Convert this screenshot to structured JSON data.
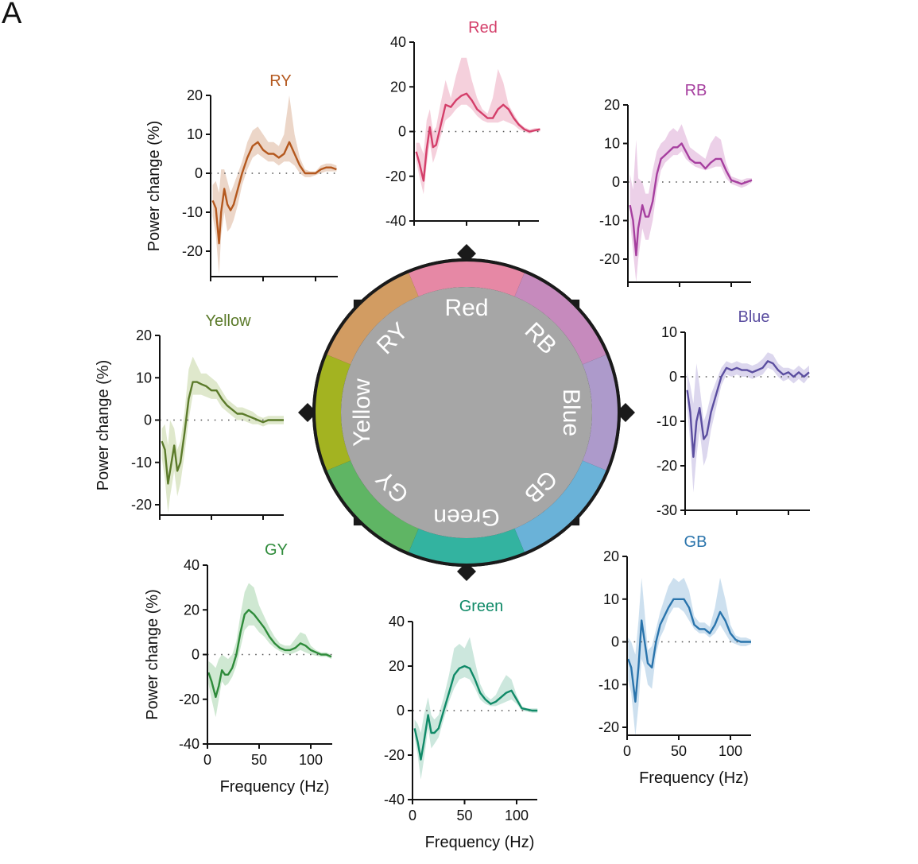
{
  "figure": {
    "panel_label": "A",
    "wheel": {
      "center_color": "#a6a6a6",
      "rim_color": "#1a1a1a",
      "segments": [
        {
          "label": "Red",
          "color": "#e688a5"
        },
        {
          "label": "RB",
          "color": "#c68abd"
        },
        {
          "label": "Blue",
          "color": "#ad9acb"
        },
        {
          "label": "GB",
          "color": "#6ab2d8"
        },
        {
          "label": "Green",
          "color": "#33b3a0"
        },
        {
          "label": "GY",
          "color": "#5fb564"
        },
        {
          "label": "Yellow",
          "color": "#a3b321"
        },
        {
          "label": "RY",
          "color": "#d29c62"
        }
      ]
    }
  },
  "chart_data": [
    {
      "id": "RY",
      "type": "line",
      "title": "RY",
      "color": "#b4581e",
      "band_color": "#ecd6c8",
      "xlabel": "",
      "ylabel": "Power change (%)",
      "xlim": [
        0,
        120
      ],
      "ylim": [
        -25,
        20
      ],
      "xticks": [
        0,
        50,
        100
      ],
      "xtick_labels": [
        "",
        "",
        ""
      ],
      "yticks": [
        -20,
        -10,
        0,
        10,
        20
      ],
      "ytick_labels": [
        "-20",
        "-10",
        "0",
        "10",
        "20"
      ],
      "zero_line": true,
      "x": [
        2,
        5,
        8,
        10,
        13,
        16,
        19,
        22,
        26,
        30,
        35,
        40,
        45,
        50,
        55,
        60,
        65,
        70,
        75,
        80,
        85,
        90,
        95,
        100,
        105,
        110,
        115,
        120
      ],
      "mean": [
        -7,
        -9,
        -18,
        -10,
        -4,
        -8,
        -9.5,
        -8,
        -4,
        0,
        4,
        7,
        8,
        6,
        5,
        5,
        4,
        5,
        8,
        5,
        2,
        0,
        0,
        0,
        1,
        1.5,
        1.5,
        1
      ],
      "upper": [
        -3,
        -2,
        -5,
        1,
        1,
        -2,
        -5,
        -3,
        0,
        3,
        8,
        11,
        12,
        10,
        8,
        8,
        7,
        10,
        20,
        10,
        4,
        1,
        0.5,
        0.5,
        2,
        2.5,
        2.5,
        2
      ],
      "lower": [
        -11,
        -16,
        -26,
        -16,
        -10,
        -15,
        -14,
        -12,
        -8,
        -3,
        1,
        4,
        5,
        4,
        3,
        3,
        2,
        3,
        3,
        2,
        0,
        -1,
        -1,
        -0.5,
        0,
        0.5,
        0.5,
        0.5
      ]
    },
    {
      "id": "Red",
      "type": "line",
      "title": "Red",
      "color": "#d43f6a",
      "band_color": "#f5d0dc",
      "xlabel": "",
      "ylabel": "",
      "xlim": [
        0,
        120
      ],
      "ylim": [
        -40,
        40
      ],
      "xticks": [
        0,
        50,
        100
      ],
      "xtick_labels": [
        "",
        "",
        ""
      ],
      "yticks": [
        -40,
        -20,
        0,
        20,
        40
      ],
      "ytick_labels": [
        "-40",
        "-20",
        "0",
        "20",
        "40"
      ],
      "zero_line": true,
      "x": [
        2,
        5,
        9,
        12,
        15,
        18,
        21,
        25,
        30,
        35,
        40,
        45,
        50,
        55,
        60,
        65,
        70,
        75,
        80,
        85,
        90,
        95,
        100,
        105,
        110,
        115,
        120
      ],
      "mean": [
        -9,
        -14,
        -22,
        -8,
        2,
        -7,
        -6,
        2,
        12,
        11,
        14,
        16,
        17,
        14,
        10,
        8,
        6,
        6,
        10,
        12,
        10,
        6,
        3,
        1,
        0,
        0.5,
        1
      ],
      "upper": [
        -5,
        -5,
        -10,
        5,
        10,
        0,
        2,
        12,
        23,
        15,
        25,
        33,
        33,
        23,
        15,
        10,
        8,
        15,
        28,
        22,
        12,
        8,
        4,
        2,
        1,
        1.5,
        1.5
      ],
      "lower": [
        -13,
        -20,
        -28,
        -15,
        -5,
        -14,
        -10,
        -3,
        5,
        7,
        10,
        12,
        12,
        10,
        7,
        5,
        4,
        4,
        4,
        5,
        4,
        3,
        1,
        0,
        -1,
        0,
        0
      ]
    },
    {
      "id": "RB",
      "type": "line",
      "title": "RB",
      "color": "#a63f9f",
      "band_color": "#ecd0e8",
      "xlabel": "",
      "ylabel": "",
      "xlim": [
        0,
        120
      ],
      "ylim": [
        -26,
        20
      ],
      "xticks": [
        0,
        50,
        100
      ],
      "xtick_labels": [
        "",
        "",
        ""
      ],
      "yticks": [
        -20,
        -10,
        0,
        10,
        20
      ],
      "ytick_labels": [
        "-20",
        "-10",
        "0",
        "10",
        "20"
      ],
      "zero_line": true,
      "x": [
        2,
        5,
        8,
        10,
        14,
        17,
        20,
        24,
        28,
        32,
        36,
        40,
        44,
        48,
        52,
        56,
        60,
        65,
        70,
        75,
        80,
        85,
        90,
        95,
        100,
        105,
        110,
        115,
        120
      ],
      "mean": [
        -6,
        -10,
        -19,
        -12,
        -6,
        -9,
        -9,
        -5,
        2,
        6,
        7,
        8,
        9,
        9,
        10,
        8,
        6,
        5,
        5,
        3.5,
        5,
        6,
        6,
        3,
        0.5,
        0,
        -0.5,
        0,
        0.5
      ],
      "upper": [
        2,
        -2,
        11,
        1,
        0,
        -3,
        -3,
        3,
        8,
        10,
        11,
        13,
        14,
        13,
        15,
        12,
        9,
        8,
        7,
        6,
        10,
        12,
        11,
        5,
        1.5,
        1,
        0.5,
        1,
        1
      ],
      "lower": [
        -10,
        -18,
        -26,
        -20,
        -12,
        -15,
        -15,
        -10,
        -2,
        3,
        5,
        6,
        7,
        7,
        8,
        6,
        5,
        4,
        3.5,
        3,
        3.5,
        4,
        4,
        1,
        -0.5,
        -1,
        -1.5,
        -1,
        0
      ]
    },
    {
      "id": "Yellow",
      "type": "line",
      "title": "Yellow",
      "color": "#5b7a2a",
      "band_color": "#dfe8cc",
      "xlabel": "",
      "ylabel": "Power change (%)",
      "xlim": [
        0,
        120
      ],
      "ylim": [
        -22,
        20
      ],
      "xticks": [
        0,
        50,
        100
      ],
      "xtick_labels": [
        "",
        "",
        ""
      ],
      "yticks": [
        -20,
        -10,
        0,
        10,
        20
      ],
      "ytick_labels": [
        "-20",
        "-10",
        "0",
        "10",
        "20"
      ],
      "zero_line": true,
      "x": [
        2,
        5,
        8,
        10,
        14,
        17,
        20,
        24,
        28,
        32,
        36,
        40,
        45,
        50,
        55,
        60,
        65,
        70,
        75,
        80,
        85,
        90,
        95,
        100,
        105,
        110,
        115,
        120
      ],
      "mean": [
        -5,
        -7,
        -15,
        -12,
        -6,
        -12,
        -10,
        -3,
        5,
        9,
        9,
        8.5,
        8,
        7,
        7,
        5,
        3.5,
        2.5,
        1.5,
        1.5,
        1,
        0.5,
        0,
        -0.5,
        0,
        0,
        0,
        0
      ],
      "upper": [
        -2,
        -1,
        -6,
        0,
        -2,
        -7,
        -5,
        2,
        12,
        15,
        13,
        11,
        11,
        10,
        9,
        7,
        5,
        4,
        3,
        3,
        2.5,
        2,
        1,
        0.5,
        1,
        1,
        1,
        1
      ],
      "lower": [
        -9,
        -14,
        -22,
        -18,
        -12,
        -18,
        -15,
        -8,
        0,
        6,
        6,
        6,
        5.5,
        5,
        5,
        3,
        2,
        1,
        0,
        0,
        -0.5,
        -1,
        -1,
        -1.5,
        -1,
        -1,
        -1,
        -1
      ]
    },
    {
      "id": "Blue",
      "type": "line",
      "title": "Blue",
      "color": "#5b4ea0",
      "band_color": "#dcd7ee",
      "xlabel": "",
      "ylabel": "",
      "xlim": [
        0,
        120
      ],
      "ylim": [
        -30,
        10
      ],
      "xticks": [
        0,
        50,
        100
      ],
      "xtick_labels": [
        "",
        "",
        ""
      ],
      "yticks": [
        -30,
        -20,
        -10,
        0,
        10
      ],
      "ytick_labels": [
        "-30",
        "-20",
        "-10",
        "0",
        "10"
      ],
      "zero_line": true,
      "x": [
        2,
        5,
        8,
        11,
        14,
        18,
        21,
        25,
        30,
        35,
        40,
        45,
        50,
        55,
        60,
        65,
        70,
        75,
        80,
        85,
        90,
        95,
        100,
        105,
        110,
        115,
        120
      ],
      "mean": [
        -3,
        -8,
        -18,
        -10,
        -7,
        -14,
        -13,
        -8,
        -4,
        0,
        2,
        1.5,
        2,
        1.5,
        1.5,
        1,
        1.5,
        2,
        3.5,
        3,
        1.5,
        0.5,
        1,
        0,
        1,
        0,
        1
      ],
      "upper": [
        1,
        -2,
        -6,
        3,
        -2,
        -10,
        -8,
        -4,
        -1,
        2,
        3.5,
        3,
        3.5,
        3,
        3,
        2.5,
        3,
        4,
        5.5,
        5,
        3,
        2,
        2,
        1.5,
        2.5,
        1.5,
        2.5
      ],
      "lower": [
        -7,
        -15,
        -26,
        -18,
        -12,
        -20,
        -18,
        -12,
        -7,
        -2,
        0.5,
        0,
        0.5,
        0,
        0,
        -0.5,
        0,
        0.5,
        2,
        1.5,
        0,
        -1,
        -0.5,
        -1.5,
        -0.5,
        -1.5,
        0
      ]
    },
    {
      "id": "GY",
      "type": "line",
      "title": "GY",
      "color": "#2e8b3a",
      "band_color": "#cfe8d2",
      "xlabel": "Frequency (Hz)",
      "ylabel": "Power change (%)",
      "xlim": [
        0,
        120
      ],
      "ylim": [
        -40,
        40
      ],
      "xticks": [
        0,
        50,
        100
      ],
      "xtick_labels": [
        "0",
        "50",
        "100"
      ],
      "yticks": [
        -40,
        -20,
        0,
        20,
        40
      ],
      "ytick_labels": [
        "-40",
        "-20",
        "0",
        "20",
        "40"
      ],
      "zero_line": true,
      "x": [
        1,
        4,
        8,
        11,
        14,
        17,
        20,
        24,
        28,
        32,
        36,
        40,
        45,
        50,
        55,
        60,
        65,
        70,
        75,
        80,
        85,
        90,
        95,
        100,
        105,
        110,
        115,
        120
      ],
      "mean": [
        -8,
        -12,
        -19,
        -14,
        -7,
        -9,
        -9,
        -6,
        0,
        10,
        18,
        20,
        18,
        15,
        12,
        8,
        5,
        3,
        2,
        2,
        3,
        5,
        4,
        2,
        1,
        0,
        0,
        -1
      ],
      "upper": [
        -3,
        -4,
        -6,
        -2,
        0,
        -1,
        -2,
        0,
        6,
        18,
        28,
        32,
        30,
        22,
        17,
        12,
        8,
        5,
        4,
        4,
        7,
        10,
        9,
        4,
        2,
        1,
        1,
        0
      ],
      "lower": [
        -13,
        -20,
        -28,
        -20,
        -12,
        -14,
        -13,
        -10,
        -5,
        3,
        11,
        13,
        13,
        10,
        8,
        5,
        3,
        1.5,
        0.5,
        0,
        1,
        2,
        1,
        0,
        -0.5,
        -1,
        -1,
        -2
      ]
    },
    {
      "id": "Green",
      "type": "line",
      "title": "Green",
      "color": "#108a68",
      "band_color": "#cce7dd",
      "xlabel": "Frequency (Hz)",
      "ylabel": "",
      "xlim": [
        0,
        120
      ],
      "ylim": [
        -40,
        40
      ],
      "xticks": [
        0,
        50,
        100
      ],
      "xtick_labels": [
        "0",
        "50",
        "100"
      ],
      "yticks": [
        -40,
        -20,
        0,
        20,
        40
      ],
      "ytick_labels": [
        "-40",
        "-20",
        "0",
        "20",
        "40"
      ],
      "zero_line": true,
      "x": [
        2,
        5,
        8,
        11,
        15,
        18,
        21,
        25,
        30,
        35,
        40,
        45,
        50,
        55,
        60,
        65,
        70,
        75,
        80,
        85,
        90,
        95,
        100,
        105,
        110,
        115,
        120
      ],
      "mean": [
        -8,
        -14,
        -22,
        -14,
        -2,
        -10,
        -10,
        -8,
        0,
        8,
        16,
        19,
        20,
        19,
        14,
        8,
        5,
        3,
        4,
        6,
        8,
        9,
        5,
        1,
        0.5,
        0,
        0
      ],
      "upper": [
        -4,
        -6,
        -10,
        -2,
        6,
        -2,
        -4,
        -2,
        6,
        16,
        28,
        30,
        28,
        33,
        22,
        12,
        7,
        5,
        7,
        12,
        16,
        14,
        7,
        2,
        1,
        1,
        1
      ],
      "lower": [
        -12,
        -20,
        -31,
        -22,
        -8,
        -17,
        -15,
        -12,
        -4,
        4,
        10,
        14,
        15,
        14,
        10,
        5,
        3,
        2,
        2,
        3,
        4,
        5,
        3,
        0,
        -0.5,
        -1,
        -1
      ]
    },
    {
      "id": "GB",
      "type": "line",
      "title": "GB",
      "color": "#2a74ac",
      "band_color": "#cde0ef",
      "xlabel": "Frequency (Hz)",
      "ylabel": "",
      "xlim": [
        0,
        120
      ],
      "ylim": [
        -22,
        20
      ],
      "xticks": [
        0,
        50,
        100
      ],
      "xtick_labels": [
        "0",
        "50",
        "100"
      ],
      "yticks": [
        -20,
        -10,
        0,
        10,
        20
      ],
      "ytick_labels": [
        "-20",
        "-10",
        "0",
        "10",
        "20"
      ],
      "zero_line": true,
      "x": [
        1,
        4,
        8,
        11,
        14,
        17,
        20,
        24,
        28,
        32,
        36,
        40,
        45,
        50,
        55,
        60,
        65,
        70,
        75,
        80,
        85,
        90,
        95,
        100,
        105,
        110,
        115,
        120
      ],
      "mean": [
        -4,
        -6,
        -14,
        -6,
        5,
        0,
        -5,
        -6,
        0,
        4,
        6,
        8,
        10,
        10,
        10,
        8,
        4,
        3,
        3,
        2,
        4,
        7,
        5,
        2,
        0.5,
        0,
        0,
        0
      ],
      "upper": [
        1,
        0,
        -3,
        5,
        15,
        7,
        -2,
        -1,
        3,
        7,
        10,
        13,
        15,
        14,
        15,
        12,
        6,
        4.5,
        4.5,
        3.5,
        8,
        15,
        10,
        4,
        1.5,
        1,
        1,
        0.5
      ],
      "lower": [
        -9,
        -12,
        -22,
        -15,
        -4,
        -6,
        -10,
        -11,
        -3,
        1,
        3,
        6,
        8,
        8,
        7,
        5,
        3,
        2,
        2,
        1,
        2,
        4,
        2,
        0,
        -0.5,
        -1,
        -1,
        -0.5
      ]
    }
  ]
}
